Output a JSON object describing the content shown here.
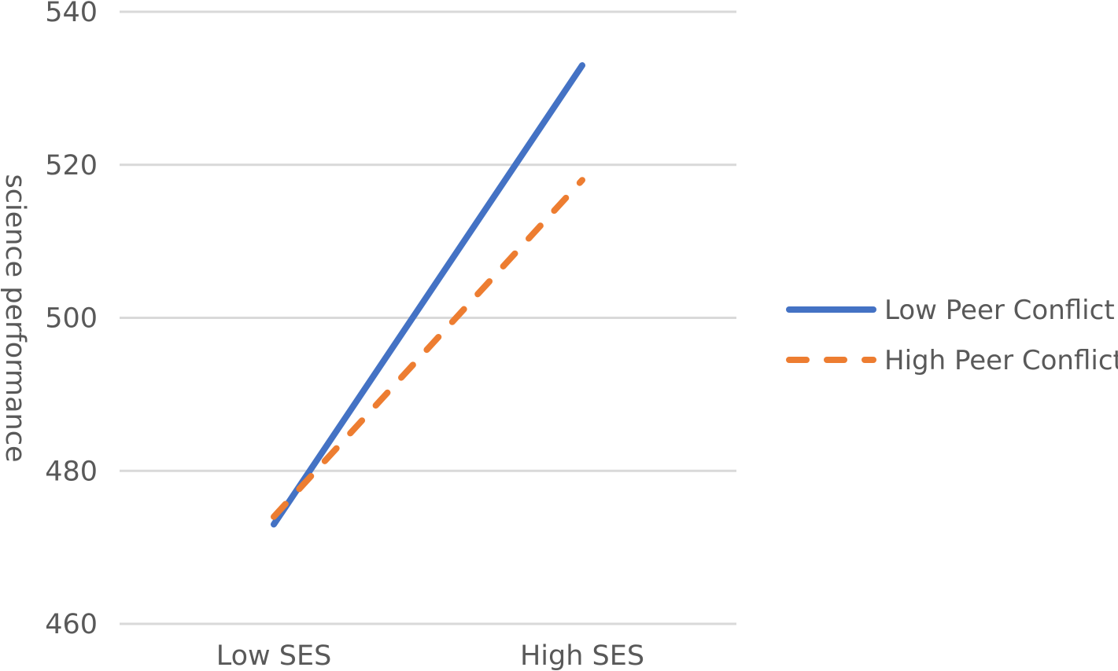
{
  "chart_data": {
    "type": "line",
    "title": "",
    "xlabel": "",
    "ylabel": "science performance",
    "categories": [
      "Low SES",
      "High SES"
    ],
    "ylim": [
      460,
      540
    ],
    "yticks": [
      460,
      480,
      500,
      520,
      540
    ],
    "ytick_labels": [
      "460",
      "480",
      "500",
      "520",
      "540"
    ],
    "grid": true,
    "legend_position": "right",
    "series": [
      {
        "name": "Low Peer Conflict",
        "values": [
          473,
          533
        ],
        "color": "#4472C4",
        "style": "solid"
      },
      {
        "name": "High Peer Conflict",
        "values": [
          474,
          518
        ],
        "color": "#ED7D31",
        "style": "dashed"
      }
    ]
  }
}
